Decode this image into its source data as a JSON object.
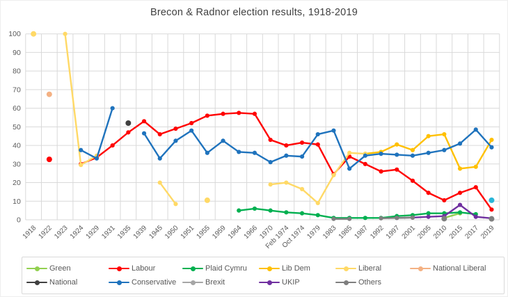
{
  "chart_data": {
    "type": "line",
    "title": "Brecon & Radnor election results, 1918-2019",
    "xlabel": "",
    "ylabel": "",
    "ylim": [
      0,
      100
    ],
    "y_tick_step": 10,
    "grid": true,
    "grid_color": "#D9D9D9",
    "axis_text_color": "#595959",
    "title_color": "#404040",
    "legend_position": "bottom",
    "categories": [
      "1918",
      "1922",
      "1923",
      "1924",
      "1929",
      "1931",
      "1935",
      "1939",
      "1945",
      "1950",
      "1951",
      "1955",
      "1959",
      "1964",
      "1966",
      "1970",
      "Feb 1974",
      "Oct 1974",
      "1979",
      "1983",
      "1985",
      "1987",
      "1992",
      "1997",
      "2001",
      "2005",
      "2010",
      "2015",
      "2017",
      "2019"
    ],
    "series": [
      {
        "name": "Green",
        "color": "#92D050",
        "values": [
          null,
          null,
          null,
          null,
          null,
          null,
          null,
          null,
          null,
          null,
          null,
          null,
          null,
          null,
          null,
          null,
          null,
          null,
          null,
          null,
          null,
          null,
          null,
          null,
          null,
          null,
          1,
          3.5,
          null,
          null
        ]
      },
      {
        "name": "Labour",
        "color": "#FF0000",
        "values": [
          null,
          32.5,
          null,
          30,
          33.5,
          40,
          47,
          53,
          46,
          49,
          52,
          56,
          57,
          57.5,
          57,
          43,
          40,
          41.5,
          40.5,
          24.5,
          34,
          30,
          26,
          27,
          21,
          14.5,
          10.5,
          14.5,
          17.5,
          5.5
        ]
      },
      {
        "name": "Plaid Cymru",
        "color": "#00B050",
        "values": [
          null,
          null,
          null,
          null,
          null,
          null,
          null,
          null,
          null,
          null,
          null,
          null,
          null,
          5,
          6,
          5,
          4,
          3.5,
          2.5,
          1,
          1,
          1,
          1,
          2,
          2.5,
          3.5,
          3.5,
          4,
          3,
          null
        ]
      },
      {
        "name": "Lib Dem",
        "color": "#FFC000",
        "values": [
          null,
          null,
          null,
          null,
          null,
          null,
          null,
          null,
          null,
          null,
          null,
          null,
          null,
          null,
          null,
          null,
          null,
          null,
          null,
          null,
          null,
          35.5,
          36.5,
          40.5,
          37.5,
          45,
          46,
          27.5,
          28.5,
          43
        ]
      },
      {
        "name": "Liberal",
        "color": "#FFD966",
        "values": [
          100,
          null,
          100,
          29.5,
          34.5,
          null,
          null,
          null,
          20,
          8.5,
          null,
          10.5,
          null,
          null,
          null,
          19,
          20,
          16.5,
          9,
          24,
          36,
          35.5,
          null,
          null,
          null,
          null,
          null,
          null,
          null,
          null
        ]
      },
      {
        "name": "National Liberal",
        "color": "#F4B183",
        "values": [
          null,
          67.5,
          null,
          null,
          null,
          null,
          null,
          null,
          null,
          null,
          null,
          null,
          null,
          null,
          null,
          null,
          null,
          null,
          null,
          null,
          null,
          null,
          null,
          null,
          null,
          null,
          null,
          null,
          null,
          null
        ]
      },
      {
        "name": "National",
        "color": "#404040",
        "values": [
          null,
          null,
          null,
          null,
          null,
          null,
          52,
          null,
          null,
          null,
          null,
          null,
          null,
          null,
          null,
          null,
          null,
          null,
          null,
          null,
          null,
          null,
          null,
          null,
          null,
          null,
          null,
          null,
          null,
          null
        ]
      },
      {
        "name": "Conservative",
        "color": "#1F73BD",
        "values": [
          null,
          null,
          null,
          37.5,
          33,
          60,
          null,
          46.5,
          33,
          42.5,
          48,
          36,
          42.5,
          36.5,
          36,
          31,
          34.5,
          34,
          46,
          48,
          27.5,
          34.5,
          35.5,
          35,
          34.5,
          36,
          37.5,
          41,
          48.5,
          39
        ]
      },
      {
        "name": "Brexit",
        "color": "#29B6D8",
        "legend_color": "#A6A6A6",
        "values": [
          null,
          null,
          null,
          null,
          null,
          null,
          null,
          null,
          null,
          null,
          null,
          null,
          null,
          null,
          null,
          null,
          null,
          null,
          null,
          null,
          null,
          null,
          null,
          null,
          null,
          null,
          null,
          null,
          null,
          10.5
        ]
      },
      {
        "name": "UKIP",
        "color": "#7030A0",
        "values": [
          null,
          null,
          null,
          null,
          null,
          null,
          null,
          null,
          null,
          null,
          null,
          null,
          null,
          null,
          null,
          null,
          null,
          null,
          null,
          null,
          null,
          null,
          null,
          1,
          1.2,
          1.6,
          2,
          8,
          1.6,
          0.8
        ]
      },
      {
        "name": "Others",
        "color": "#7F7F7F",
        "values": [
          null,
          null,
          null,
          null,
          null,
          null,
          null,
          null,
          null,
          null,
          null,
          null,
          null,
          null,
          null,
          null,
          null,
          null,
          null,
          0.5,
          0.5,
          null,
          0.8,
          1,
          1.2,
          null,
          0.6,
          null,
          null,
          0.5
        ]
      }
    ]
  }
}
